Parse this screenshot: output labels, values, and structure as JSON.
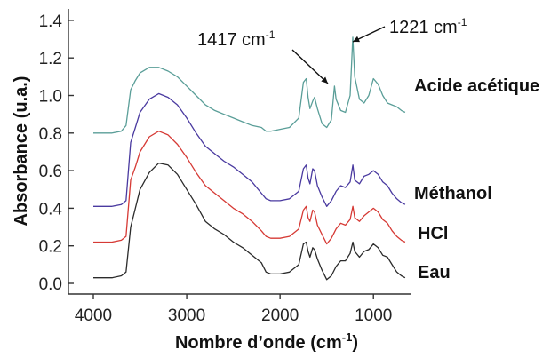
{
  "chart_data": {
    "type": "line",
    "title": "",
    "xlabel": "Nombre d’onde (cm",
    "xlabel_sup": "-1",
    "xlabel_close": ")",
    "ylabel": "Absorbance (u.a.)",
    "xlim": [
      4000,
      650
    ],
    "x_reversed": true,
    "ylim": [
      -0.1,
      1.4
    ],
    "grid": false,
    "x_ticks": [
      4000,
      3000,
      2000,
      1000
    ],
    "y_ticks": [
      0.0,
      0.2,
      0.4,
      0.6,
      0.8,
      1.0,
      1.2,
      1.4
    ],
    "y_tick_labels": [
      "0.0",
      "0.2",
      "0.4",
      "0.6",
      "0.8",
      "1.0",
      "1.2",
      "1.4"
    ],
    "series": [
      {
        "name": "Eau",
        "color": "#2b2b2b",
        "points": [
          [
            4000,
            0.03
          ],
          [
            3800,
            0.03
          ],
          [
            3700,
            0.04
          ],
          [
            3650,
            0.06
          ],
          [
            3600,
            0.3
          ],
          [
            3550,
            0.4
          ],
          [
            3500,
            0.5
          ],
          [
            3400,
            0.59
          ],
          [
            3300,
            0.64
          ],
          [
            3200,
            0.63
          ],
          [
            3100,
            0.58
          ],
          [
            3000,
            0.5
          ],
          [
            2900,
            0.42
          ],
          [
            2800,
            0.33
          ],
          [
            2700,
            0.29
          ],
          [
            2600,
            0.26
          ],
          [
            2500,
            0.22
          ],
          [
            2400,
            0.19
          ],
          [
            2300,
            0.15
          ],
          [
            2200,
            0.11
          ],
          [
            2150,
            0.06
          ],
          [
            2100,
            0.05
          ],
          [
            2000,
            0.05
          ],
          [
            1900,
            0.06
          ],
          [
            1800,
            0.1
          ],
          [
            1750,
            0.21
          ],
          [
            1720,
            0.22
          ],
          [
            1700,
            0.17
          ],
          [
            1680,
            0.14
          ],
          [
            1650,
            0.19
          ],
          [
            1630,
            0.18
          ],
          [
            1600,
            0.13
          ],
          [
            1550,
            0.07
          ],
          [
            1500,
            0.02
          ],
          [
            1450,
            0.04
          ],
          [
            1400,
            0.09
          ],
          [
            1350,
            0.12
          ],
          [
            1300,
            0.12
          ],
          [
            1250,
            0.16
          ],
          [
            1220,
            0.22
          ],
          [
            1200,
            0.17
          ],
          [
            1150,
            0.14
          ],
          [
            1100,
            0.17
          ],
          [
            1050,
            0.18
          ],
          [
            1000,
            0.21
          ],
          [
            950,
            0.19
          ],
          [
            900,
            0.15
          ],
          [
            850,
            0.14
          ],
          [
            800,
            0.1
          ],
          [
            750,
            0.06
          ],
          [
            700,
            0.04
          ],
          [
            660,
            0.03
          ]
        ]
      },
      {
        "name": "HCl",
        "color": "#d63a35",
        "points": [
          [
            4000,
            0.22
          ],
          [
            3800,
            0.22
          ],
          [
            3700,
            0.23
          ],
          [
            3650,
            0.25
          ],
          [
            3600,
            0.55
          ],
          [
            3550,
            0.62
          ],
          [
            3500,
            0.7
          ],
          [
            3400,
            0.78
          ],
          [
            3300,
            0.81
          ],
          [
            3200,
            0.79
          ],
          [
            3100,
            0.74
          ],
          [
            3000,
            0.67
          ],
          [
            2900,
            0.59
          ],
          [
            2800,
            0.52
          ],
          [
            2700,
            0.48
          ],
          [
            2600,
            0.44
          ],
          [
            2500,
            0.4
          ],
          [
            2400,
            0.37
          ],
          [
            2300,
            0.33
          ],
          [
            2200,
            0.28
          ],
          [
            2150,
            0.25
          ],
          [
            2100,
            0.24
          ],
          [
            2000,
            0.24
          ],
          [
            1900,
            0.25
          ],
          [
            1800,
            0.29
          ],
          [
            1750,
            0.39
          ],
          [
            1720,
            0.41
          ],
          [
            1700,
            0.35
          ],
          [
            1680,
            0.33
          ],
          [
            1650,
            0.39
          ],
          [
            1630,
            0.38
          ],
          [
            1600,
            0.31
          ],
          [
            1550,
            0.26
          ],
          [
            1500,
            0.21
          ],
          [
            1450,
            0.24
          ],
          [
            1400,
            0.29
          ],
          [
            1350,
            0.32
          ],
          [
            1300,
            0.31
          ],
          [
            1250,
            0.34
          ],
          [
            1220,
            0.41
          ],
          [
            1200,
            0.35
          ],
          [
            1150,
            0.33
          ],
          [
            1100,
            0.36
          ],
          [
            1050,
            0.38
          ],
          [
            1000,
            0.4
          ],
          [
            950,
            0.38
          ],
          [
            900,
            0.34
          ],
          [
            850,
            0.32
          ],
          [
            800,
            0.28
          ],
          [
            750,
            0.25
          ],
          [
            700,
            0.23
          ],
          [
            660,
            0.22
          ]
        ]
      },
      {
        "name": "Méthanol",
        "color": "#4a3aa0",
        "points": [
          [
            4000,
            0.41
          ],
          [
            3800,
            0.41
          ],
          [
            3700,
            0.42
          ],
          [
            3650,
            0.44
          ],
          [
            3600,
            0.75
          ],
          [
            3550,
            0.83
          ],
          [
            3500,
            0.91
          ],
          [
            3400,
            0.98
          ],
          [
            3300,
            1.01
          ],
          [
            3200,
            0.99
          ],
          [
            3100,
            0.95
          ],
          [
            3000,
            0.88
          ],
          [
            2900,
            0.8
          ],
          [
            2800,
            0.73
          ],
          [
            2700,
            0.69
          ],
          [
            2600,
            0.65
          ],
          [
            2500,
            0.62
          ],
          [
            2400,
            0.58
          ],
          [
            2300,
            0.54
          ],
          [
            2200,
            0.48
          ],
          [
            2150,
            0.45
          ],
          [
            2100,
            0.44
          ],
          [
            2000,
            0.44
          ],
          [
            1900,
            0.45
          ],
          [
            1800,
            0.49
          ],
          [
            1750,
            0.61
          ],
          [
            1720,
            0.63
          ],
          [
            1700,
            0.56
          ],
          [
            1680,
            0.53
          ],
          [
            1650,
            0.61
          ],
          [
            1630,
            0.6
          ],
          [
            1600,
            0.52
          ],
          [
            1550,
            0.46
          ],
          [
            1500,
            0.41
          ],
          [
            1450,
            0.44
          ],
          [
            1400,
            0.49
          ],
          [
            1350,
            0.52
          ],
          [
            1300,
            0.51
          ],
          [
            1250,
            0.54
          ],
          [
            1220,
            0.63
          ],
          [
            1200,
            0.55
          ],
          [
            1150,
            0.53
          ],
          [
            1100,
            0.57
          ],
          [
            1050,
            0.58
          ],
          [
            1000,
            0.6
          ],
          [
            950,
            0.58
          ],
          [
            900,
            0.54
          ],
          [
            850,
            0.52
          ],
          [
            800,
            0.48
          ],
          [
            750,
            0.45
          ],
          [
            700,
            0.43
          ],
          [
            660,
            0.42
          ]
        ]
      },
      {
        "name": "Acide acétique",
        "color": "#5a9e98",
        "points": [
          [
            4000,
            0.8
          ],
          [
            3800,
            0.8
          ],
          [
            3700,
            0.81
          ],
          [
            3650,
            0.84
          ],
          [
            3600,
            1.03
          ],
          [
            3550,
            1.08
          ],
          [
            3500,
            1.12
          ],
          [
            3400,
            1.15
          ],
          [
            3300,
            1.15
          ],
          [
            3200,
            1.13
          ],
          [
            3100,
            1.1
          ],
          [
            3000,
            1.05
          ],
          [
            2900,
            1.0
          ],
          [
            2800,
            0.95
          ],
          [
            2700,
            0.92
          ],
          [
            2600,
            0.9
          ],
          [
            2500,
            0.88
          ],
          [
            2400,
            0.86
          ],
          [
            2300,
            0.84
          ],
          [
            2200,
            0.83
          ],
          [
            2150,
            0.81
          ],
          [
            2100,
            0.81
          ],
          [
            2000,
            0.82
          ],
          [
            1900,
            0.83
          ],
          [
            1800,
            0.88
          ],
          [
            1750,
            1.07
          ],
          [
            1720,
            1.09
          ],
          [
            1700,
            0.99
          ],
          [
            1680,
            0.93
          ],
          [
            1650,
            0.97
          ],
          [
            1630,
            0.99
          ],
          [
            1600,
            0.93
          ],
          [
            1550,
            0.85
          ],
          [
            1500,
            0.83
          ],
          [
            1450,
            0.87
          ],
          [
            1417,
            1.05
          ],
          [
            1400,
            0.98
          ],
          [
            1350,
            0.92
          ],
          [
            1300,
            0.91
          ],
          [
            1250,
            1.0
          ],
          [
            1221,
            1.31
          ],
          [
            1200,
            1.1
          ],
          [
            1150,
            0.98
          ],
          [
            1100,
            0.96
          ],
          [
            1050,
            1.0
          ],
          [
            1000,
            1.09
          ],
          [
            950,
            1.06
          ],
          [
            900,
            1.0
          ],
          [
            850,
            0.96
          ],
          [
            800,
            0.95
          ],
          [
            750,
            0.94
          ],
          [
            700,
            0.92
          ],
          [
            660,
            0.91
          ]
        ]
      }
    ],
    "series_labels": [
      {
        "series": "Acide acétique",
        "text": "Acide acétique"
      },
      {
        "series": "Méthanol",
        "text": "Méthanol"
      },
      {
        "series": "HCl",
        "text": "HCl"
      },
      {
        "series": "Eau",
        "text": "Eau"
      }
    ],
    "annotations": [
      {
        "text": "1417 cm",
        "sup": "-1",
        "x": 1417,
        "y": 1.05
      },
      {
        "text": "1221 cm",
        "sup": "-1",
        "x": 1221,
        "y": 1.31
      }
    ]
  }
}
